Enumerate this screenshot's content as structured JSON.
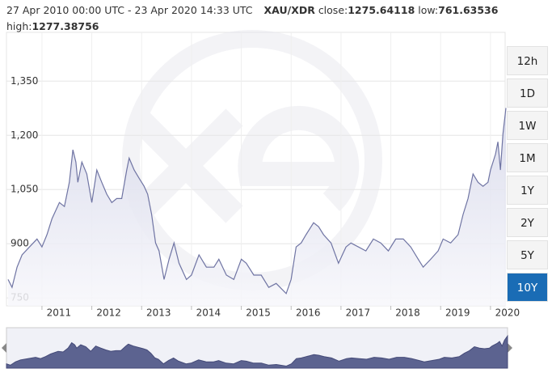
{
  "chart_data": {
    "type": "area",
    "period": "27 Apr 2010 00:00 UTC - 23 Apr 2020 14:33 UTC",
    "pair": "XAU/XDR",
    "close_label": "close:",
    "close": 1275.64118,
    "low_label": "low:",
    "low": 761.63536,
    "high_label": "high:",
    "high": 1277.38756,
    "x": [
      2010.32,
      2010.4,
      2010.5,
      2010.6,
      2010.75,
      2010.9,
      2011.0,
      2011.1,
      2011.2,
      2011.35,
      2011.45,
      2011.55,
      2011.62,
      2011.68,
      2011.72,
      2011.8,
      2011.9,
      2012.0,
      2012.1,
      2012.2,
      2012.3,
      2012.4,
      2012.5,
      2012.6,
      2012.7,
      2012.75,
      2012.85,
      2012.95,
      2013.05,
      2013.12,
      2013.2,
      2013.28,
      2013.35,
      2013.45,
      2013.55,
      2013.65,
      2013.75,
      2013.9,
      2014.0,
      2014.15,
      2014.3,
      2014.45,
      2014.55,
      2014.7,
      2014.85,
      2015.0,
      2015.1,
      2015.25,
      2015.4,
      2015.55,
      2015.7,
      2015.9,
      2016.0,
      2016.1,
      2016.2,
      2016.3,
      2016.45,
      2016.55,
      2016.65,
      2016.8,
      2016.95,
      2017.1,
      2017.2,
      2017.35,
      2017.5,
      2017.65,
      2017.8,
      2017.95,
      2018.1,
      2018.25,
      2018.4,
      2018.55,
      2018.65,
      2018.8,
      2018.95,
      2019.05,
      2019.2,
      2019.35,
      2019.45,
      2019.55,
      2019.65,
      2019.75,
      2019.85,
      2019.95,
      2020.0,
      2020.1,
      2020.15,
      2020.2,
      2020.25,
      2020.31
    ],
    "values": [
      801,
      779,
      835,
      869,
      891,
      913,
      891,
      925,
      969,
      1014,
      1003,
      1070,
      1160,
      1126,
      1070,
      1126,
      1093,
      1014,
      1104,
      1070,
      1037,
      1014,
      1025,
      1025,
      1104,
      1137,
      1104,
      1081,
      1059,
      1037,
      981,
      902,
      880,
      801,
      857,
      902,
      846,
      801,
      813,
      869,
      835,
      835,
      857,
      813,
      801,
      857,
      846,
      813,
      813,
      779,
      790,
      762,
      801,
      891,
      902,
      925,
      958,
      947,
      925,
      902,
      846,
      891,
      902,
      891,
      880,
      913,
      902,
      880,
      913,
      913,
      891,
      857,
      835,
      857,
      880,
      913,
      902,
      925,
      981,
      1025,
      1093,
      1070,
      1059,
      1070,
      1104,
      1148,
      1182,
      1104,
      1204,
      1275.64118
    ],
    "color": "#6f74a3",
    "xlim": [
      2010.32,
      2020.31
    ],
    "xticks": [
      2011,
      2012,
      2013,
      2014,
      2015,
      2016,
      2017,
      2018,
      2019,
      2020
    ],
    "ylim": [
      728,
      1485
    ],
    "yticks": [
      750,
      900,
      {
        "value": 1050,
        "label": "1,050"
      },
      {
        "value": 1200,
        "label": "1,200"
      },
      {
        "value": 1350,
        "label": "1,350"
      }
    ],
    "grid": true,
    "ranges": [
      "12h",
      "1D",
      "1W",
      "1M",
      "1Y",
      "2Y",
      "5Y",
      "10Y"
    ],
    "selected_range": "10Y"
  }
}
